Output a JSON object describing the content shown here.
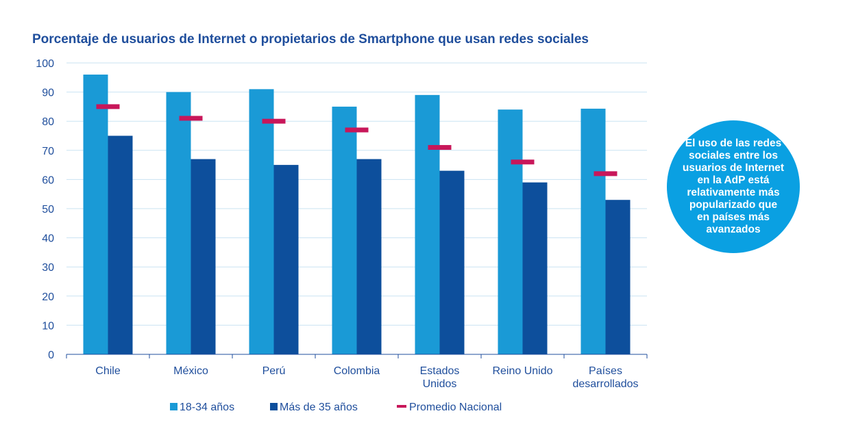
{
  "chart_data": {
    "type": "bar",
    "title": "Porcentaje de usuarios de Internet o propietarios de Smartphone que usan redes sociales",
    "categories": [
      [
        "Chile"
      ],
      [
        "México"
      ],
      [
        "Perú"
      ],
      [
        "Colombia"
      ],
      [
        "Estados",
        "Unidos"
      ],
      [
        "Reino Unido"
      ],
      [
        "Países",
        "desarrollados"
      ]
    ],
    "series": [
      {
        "name": "18-34 años",
        "type": "bar",
        "color": "#1a9ad6",
        "values": [
          96,
          90,
          91,
          85,
          89,
          84,
          84.3
        ]
      },
      {
        "name": "Más de 35 años",
        "type": "bar",
        "color": "#0d4f9c",
        "values": [
          75,
          67,
          65,
          67,
          63,
          59,
          53
        ]
      },
      {
        "name": "Promedio Nacional",
        "type": "marker",
        "color": "#c8175a",
        "values": [
          85,
          81,
          80,
          77,
          71,
          66,
          62
        ]
      }
    ],
    "ylim": [
      0,
      100
    ],
    "yticks": [
      0,
      10,
      20,
      30,
      40,
      50,
      60,
      70,
      80,
      90,
      100
    ],
    "grid": true,
    "xlabel": "",
    "ylabel": "",
    "legend_position": "bottom"
  },
  "colors": {
    "title": "#1f4e9c",
    "axis_text": "#1f4e9c",
    "gridline": "#c9e3f2",
    "axis": "#1f4e9c",
    "callout_bg": "#0aa0e2"
  },
  "callout": {
    "text": "El uso de las redes sociales entre los usuarios de Internet en la AdP está relativamente más popularizado que en países más avanzados"
  }
}
